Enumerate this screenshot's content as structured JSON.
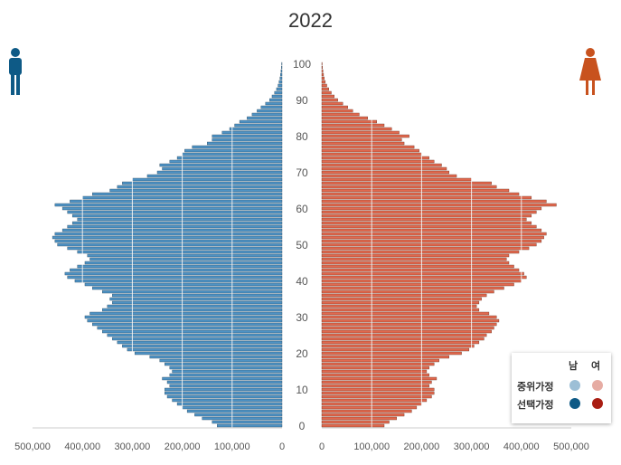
{
  "chart_data": {
    "type": "bar",
    "orientation": "population-pyramid",
    "title": "2022",
    "age_axis": {
      "min": 0,
      "max": 100,
      "ticks": [
        0,
        10,
        20,
        30,
        40,
        50,
        60,
        70,
        80,
        90,
        100
      ]
    },
    "value_axis": {
      "min": 0,
      "max": 500000,
      "ticks": [
        0,
        100000,
        200000,
        300000,
        400000,
        500000
      ],
      "tick_labels": [
        "0",
        "100,000",
        "200,000",
        "300,000",
        "400,000",
        "500,000"
      ]
    },
    "grid": true,
    "legend": {
      "placement": "bottom-right",
      "columns": [
        "남",
        "여"
      ],
      "rows": [
        {
          "label": "중위가정",
          "colors": [
            "#9dbfd6",
            "#e6aca3"
          ]
        },
        {
          "label": "선택가정",
          "colors": [
            "#0e5a86",
            "#a91d12"
          ]
        }
      ]
    },
    "colors": {
      "male": "#4f93c5",
      "female": "#e2694f"
    },
    "ages": [
      0,
      1,
      2,
      3,
      4,
      5,
      6,
      7,
      8,
      9,
      10,
      11,
      12,
      13,
      14,
      15,
      16,
      17,
      18,
      19,
      20,
      21,
      22,
      23,
      24,
      25,
      26,
      27,
      28,
      29,
      30,
      31,
      32,
      33,
      34,
      35,
      36,
      37,
      38,
      39,
      40,
      41,
      42,
      43,
      44,
      45,
      46,
      47,
      48,
      49,
      50,
      51,
      52,
      53,
      54,
      55,
      56,
      57,
      58,
      59,
      60,
      61,
      62,
      63,
      64,
      65,
      66,
      67,
      68,
      69,
      70,
      71,
      72,
      73,
      74,
      75,
      76,
      77,
      78,
      79,
      80,
      81,
      82,
      83,
      84,
      85,
      86,
      87,
      88,
      89,
      90,
      91,
      92,
      93,
      94,
      95,
      96,
      97,
      98,
      99,
      100
    ],
    "series": [
      {
        "name": "남",
        "values": [
          130000,
          140000,
          160000,
          175000,
          190000,
          200000,
          210000,
          220000,
          230000,
          235000,
          235000,
          225000,
          230000,
          240000,
          225000,
          220000,
          225000,
          235000,
          245000,
          265000,
          295000,
          310000,
          320000,
          330000,
          340000,
          350000,
          360000,
          370000,
          380000,
          390000,
          395000,
          385000,
          360000,
          350000,
          340000,
          345000,
          340000,
          360000,
          380000,
          395000,
          415000,
          430000,
          435000,
          425000,
          410000,
          395000,
          385000,
          390000,
          410000,
          430000,
          450000,
          455000,
          460000,
          455000,
          440000,
          430000,
          420000,
          410000,
          420000,
          430000,
          440000,
          455000,
          425000,
          400000,
          380000,
          345000,
          330000,
          320000,
          300000,
          270000,
          250000,
          240000,
          245000,
          225000,
          210000,
          200000,
          195000,
          180000,
          150000,
          140000,
          140000,
          120000,
          105000,
          95000,
          85000,
          70000,
          60000,
          50000,
          42000,
          33000,
          25000,
          20000,
          15000,
          11000,
          8000,
          6000,
          4000,
          3000,
          2000,
          1200,
          800
        ]
      },
      {
        "name": "여",
        "values": [
          125000,
          135000,
          150000,
          165000,
          180000,
          190000,
          200000,
          210000,
          220000,
          225000,
          225000,
          215000,
          220000,
          230000,
          215000,
          210000,
          215000,
          225000,
          235000,
          255000,
          280000,
          295000,
          305000,
          315000,
          325000,
          330000,
          340000,
          345000,
          350000,
          355000,
          350000,
          335000,
          315000,
          310000,
          315000,
          320000,
          330000,
          345000,
          365000,
          385000,
          400000,
          410000,
          405000,
          395000,
          385000,
          375000,
          370000,
          375000,
          395000,
          415000,
          430000,
          440000,
          445000,
          450000,
          440000,
          430000,
          420000,
          410000,
          420000,
          430000,
          440000,
          470000,
          450000,
          420000,
          395000,
          375000,
          350000,
          340000,
          300000,
          270000,
          255000,
          250000,
          240000,
          225000,
          215000,
          200000,
          195000,
          185000,
          165000,
          160000,
          175000,
          155000,
          140000,
          125000,
          110000,
          92000,
          75000,
          62000,
          52000,
          42000,
          32000,
          25000,
          19000,
          14000,
          10000,
          7000,
          5000,
          3500,
          2200,
          1300,
          800
        ]
      }
    ]
  }
}
